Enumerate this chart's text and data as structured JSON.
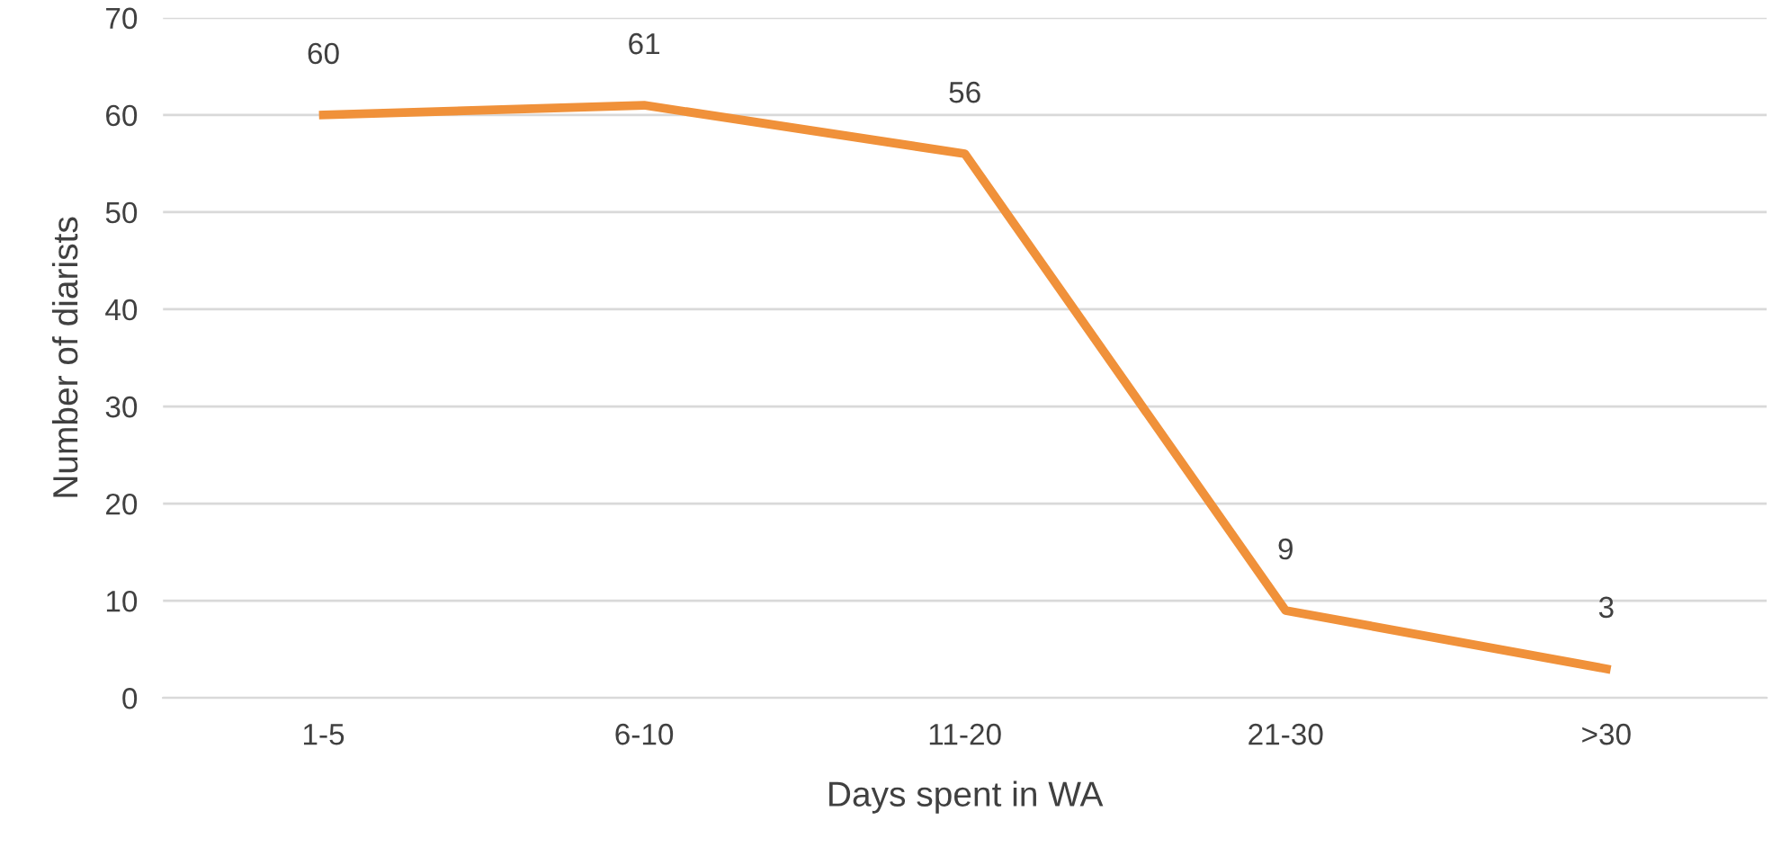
{
  "chart_data": {
    "type": "line",
    "xlabel": "Days spent in WA",
    "ylabel": "Number of diarists",
    "categories": [
      "1-5",
      "6-10",
      "11-20",
      "21-30",
      ">30"
    ],
    "series": [
      {
        "color": "#f0913a",
        "values": [
          60,
          61,
          56,
          9,
          3
        ]
      }
    ],
    "ylim": [
      0,
      70
    ],
    "yticks": [
      0,
      10,
      20,
      30,
      40,
      50,
      60,
      70
    ],
    "grid": "y",
    "data_labels": true,
    "marker": "none",
    "line_style": "solid"
  }
}
